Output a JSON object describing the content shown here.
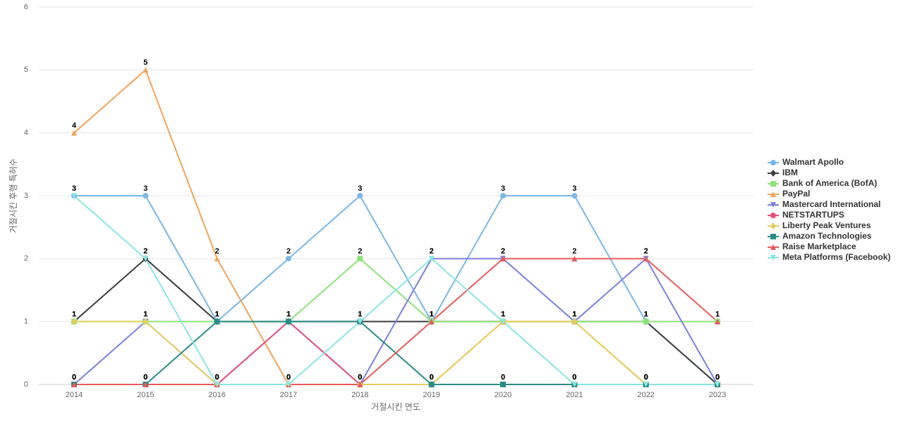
{
  "chart_data": {
    "type": "line",
    "x_label": "거절시킨 연도",
    "y_label": "거절시킨 후행 특허수",
    "categories": [
      "2014",
      "2015",
      "2016",
      "2017",
      "2018",
      "2019",
      "2020",
      "2021",
      "2022",
      "2023"
    ],
    "ylim": [
      0,
      6
    ],
    "yticks": [
      0,
      1,
      2,
      3,
      4,
      5,
      6
    ],
    "grid": true,
    "legend": "right",
    "series": [
      {
        "name": "Walmart Apollo",
        "color": "#7ab6e8",
        "marker": "circle",
        "values": [
          3,
          3,
          1,
          2,
          3,
          1,
          3,
          3,
          1,
          0
        ]
      },
      {
        "name": "IBM",
        "color": "#3d3d3d",
        "marker": "diamond",
        "values": [
          1,
          2,
          1,
          1,
          1,
          1,
          1,
          1,
          1,
          0
        ]
      },
      {
        "name": "Bank of America (BofA)",
        "color": "#8ee27a",
        "marker": "square",
        "values": [
          1,
          1,
          1,
          1,
          2,
          1,
          1,
          1,
          1,
          1
        ]
      },
      {
        "name": "PayPal",
        "color": "#f2a35a",
        "marker": "triangle",
        "values": [
          4,
          5,
          2,
          0,
          0,
          0,
          1,
          1,
          0,
          0
        ]
      },
      {
        "name": "Mastercard International",
        "color": "#7b7fe0",
        "marker": "triangle-down",
        "values": [
          0,
          1,
          0,
          1,
          0,
          2,
          2,
          1,
          2,
          0
        ]
      },
      {
        "name": "NETSTARTUPS",
        "color": "#e8507a",
        "marker": "circle",
        "values": [
          0,
          0,
          0,
          1,
          0,
          0,
          0,
          0,
          0,
          0
        ]
      },
      {
        "name": "Liberty Peak Ventures",
        "color": "#e4cf5e",
        "marker": "diamond",
        "values": [
          1,
          1,
          0,
          0,
          0,
          0,
          1,
          1,
          0,
          0
        ]
      },
      {
        "name": "Amazon Technologies",
        "color": "#2a8c86",
        "marker": "square",
        "values": [
          0,
          0,
          1,
          1,
          1,
          0,
          0,
          0,
          0,
          0
        ]
      },
      {
        "name": "Raise Marketplace",
        "color": "#e85a5a",
        "marker": "triangle",
        "values": [
          0,
          0,
          0,
          0,
          0,
          1,
          2,
          2,
          2,
          1
        ]
      },
      {
        "name": "Meta Platforms (Facebook)",
        "color": "#8ae6e2",
        "marker": "triangle-down",
        "values": [
          3,
          2,
          0,
          0,
          1,
          2,
          1,
          0,
          0,
          0
        ]
      }
    ]
  }
}
